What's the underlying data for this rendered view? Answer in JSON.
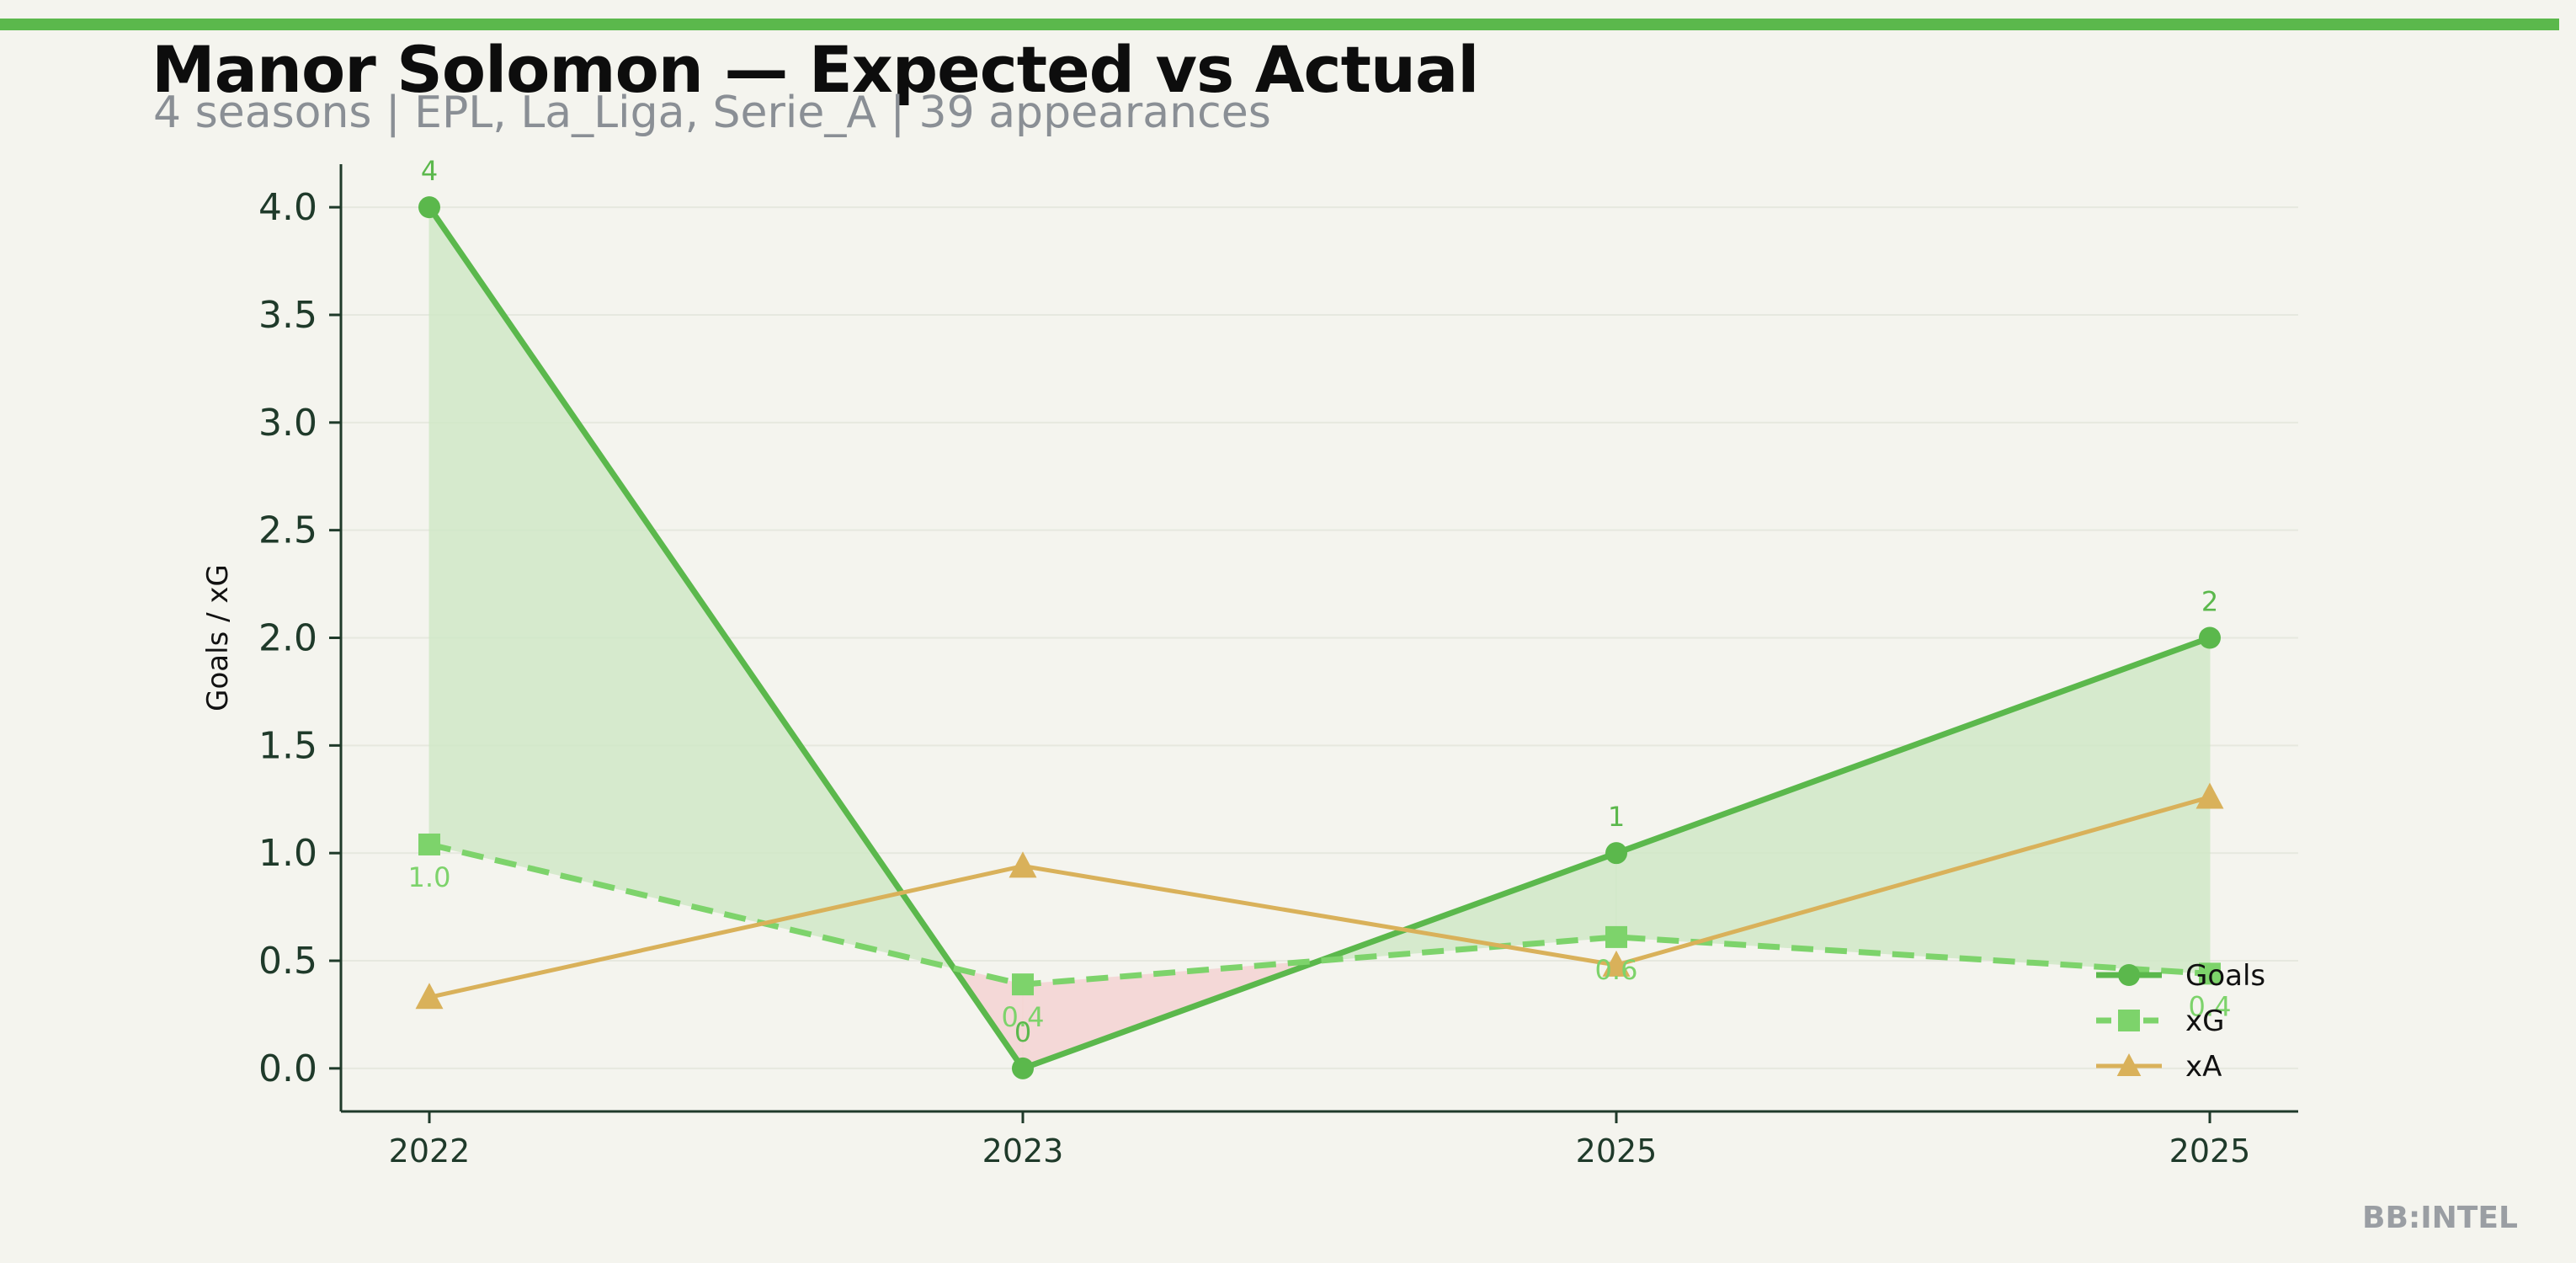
{
  "header": {
    "title": "Manor Solomon — Expected vs Actual",
    "subtitle": "4 seasons | EPL, La_Liga, Serie_A | 39 appearances"
  },
  "brand": "BB:INTEL",
  "colors": {
    "accent": "#5bb84c",
    "goals": "#5bb84c",
    "xg": "#7dd36b",
    "xa": "#d9b15a",
    "fill_over": "#cfe8c6",
    "fill_under": "#f5d2d2",
    "axis": "#1f3a2a",
    "brand_text": "#9a9ea3"
  },
  "chart_data": {
    "type": "line",
    "categories": [
      "2022",
      "2023",
      "2025",
      "2025"
    ],
    "ylabel": "Goals / xG",
    "ylim": [
      -0.2,
      4.2
    ],
    "yticks": [
      0.0,
      0.5,
      1.0,
      1.5,
      2.0,
      2.5,
      3.0,
      3.5,
      4.0
    ],
    "grid": true,
    "legend": "lower-right",
    "series": [
      {
        "name": "Goals",
        "values": [
          4,
          0,
          1,
          2
        ],
        "labels": [
          "4",
          "0",
          "1",
          "2"
        ],
        "style": "solid",
        "marker": "circle"
      },
      {
        "name": "xG",
        "values": [
          1.04,
          0.39,
          0.61,
          0.44
        ],
        "labels": [
          "1.0",
          "0.4",
          "0.6",
          "0.4"
        ],
        "style": "dashed",
        "marker": "square"
      },
      {
        "name": "xA",
        "values": [
          0.33,
          0.94,
          0.48,
          1.26
        ],
        "style": "solid",
        "marker": "triangle"
      }
    ]
  }
}
